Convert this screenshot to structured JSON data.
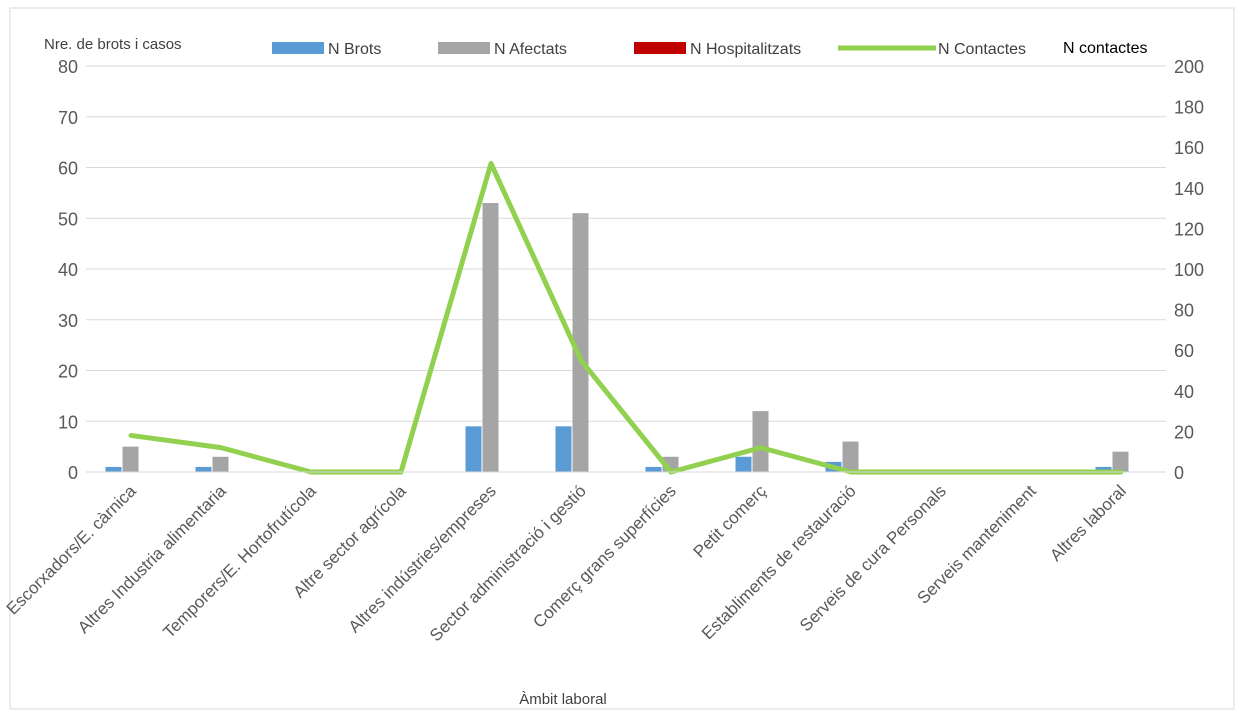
{
  "chart_data": {
    "type": "bar",
    "title": "",
    "xlabel": "Àmbit laboral",
    "ylabel": "Nre. de brots i casos",
    "y2label": "N contactes",
    "ylim": [
      0,
      80
    ],
    "y2lim": [
      0,
      200
    ],
    "yticks": [
      0,
      10,
      20,
      30,
      40,
      50,
      60,
      70,
      80
    ],
    "y2ticks": [
      0,
      20,
      40,
      60,
      80,
      100,
      120,
      140,
      160,
      180,
      200
    ],
    "grid": true,
    "legend_position": "top",
    "categories": [
      "Escorxadors/E. càrnica",
      "Altres Industria alimentaria",
      "Temporers/E. Hortofrutícola",
      "Altre sector agrícola",
      "Altres indústries/empreses",
      "Sector administració i gestió",
      "Comerç grans superfícies",
      "Petit comerç",
      "Establiments de restauració",
      "Serveis de cura Personals",
      "Serveis manteniment",
      "Altres laboral"
    ],
    "series": [
      {
        "name": "N Brots",
        "kind": "bar",
        "axis": "left",
        "color": "#5b9bd5",
        "values": [
          1,
          1,
          0,
          0,
          9,
          9,
          1,
          3,
          2,
          0,
          0,
          1
        ]
      },
      {
        "name": "N  Afectats",
        "kind": "bar",
        "axis": "left",
        "color": "#a5a5a5",
        "values": [
          5,
          3,
          0,
          0,
          53,
          51,
          3,
          12,
          6,
          0,
          0,
          4
        ]
      },
      {
        "name": "N  Hospitalitzats",
        "kind": "bar",
        "axis": "left",
        "color": "#c00000",
        "values": [
          0,
          0,
          0,
          0,
          0,
          0,
          0,
          0,
          0,
          0,
          0,
          0
        ]
      },
      {
        "name": "N Contactes",
        "kind": "line",
        "axis": "right",
        "color": "#92d050",
        "values": [
          18,
          12,
          0,
          0,
          152,
          55,
          0,
          12,
          0,
          0,
          0,
          0
        ]
      }
    ]
  }
}
